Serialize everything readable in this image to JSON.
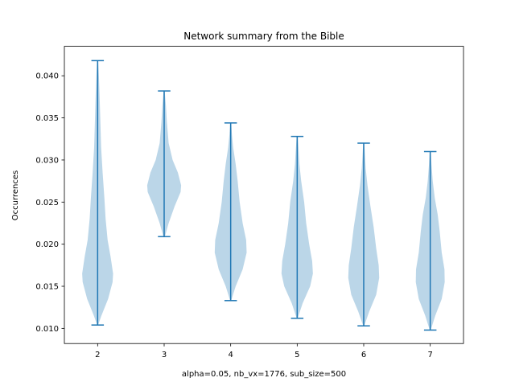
{
  "chart_data": {
    "type": "violin",
    "title": "Network summary from the Bible",
    "xlabel": "alpha=0.05, nb_vx=1776, sub_size=500",
    "ylabel": "Occurrences",
    "xlim": [
      1.5,
      7.5
    ],
    "ylim": [
      0.0082,
      0.0435
    ],
    "x_ticks": [
      2,
      3,
      4,
      5,
      6,
      7
    ],
    "y_ticks": [
      0.01,
      0.015,
      0.02,
      0.025,
      0.03,
      0.035,
      0.04
    ],
    "y_tick_labels": [
      "0.010",
      "0.015",
      "0.020",
      "0.025",
      "0.030",
      "0.035",
      "0.040"
    ],
    "grid": false,
    "colors": {
      "body": "#1f77b4",
      "body_alpha": 0.3,
      "lines": "#1f77b4"
    },
    "violins": [
      {
        "x": 2,
        "min": 0.0104,
        "max": 0.0418,
        "profile": [
          [
            0.0104,
            0.02
          ],
          [
            0.0115,
            0.15
          ],
          [
            0.0135,
            0.42
          ],
          [
            0.0155,
            0.6
          ],
          [
            0.0165,
            0.62
          ],
          [
            0.0185,
            0.52
          ],
          [
            0.0205,
            0.4
          ],
          [
            0.023,
            0.32
          ],
          [
            0.0255,
            0.27
          ],
          [
            0.0285,
            0.2
          ],
          [
            0.0315,
            0.14
          ],
          [
            0.0345,
            0.11
          ],
          [
            0.0375,
            0.08
          ],
          [
            0.04,
            0.05
          ],
          [
            0.0418,
            0.02
          ]
        ]
      },
      {
        "x": 3,
        "min": 0.0209,
        "max": 0.0382,
        "profile": [
          [
            0.0209,
            0.03
          ],
          [
            0.0225,
            0.18
          ],
          [
            0.0245,
            0.42
          ],
          [
            0.0262,
            0.66
          ],
          [
            0.027,
            0.68
          ],
          [
            0.0285,
            0.55
          ],
          [
            0.03,
            0.34
          ],
          [
            0.032,
            0.18
          ],
          [
            0.0345,
            0.11
          ],
          [
            0.0365,
            0.07
          ],
          [
            0.0382,
            0.02
          ]
        ]
      },
      {
        "x": 4,
        "min": 0.0133,
        "max": 0.0344,
        "profile": [
          [
            0.0133,
            0.02
          ],
          [
            0.015,
            0.2
          ],
          [
            0.017,
            0.48
          ],
          [
            0.019,
            0.64
          ],
          [
            0.0205,
            0.62
          ],
          [
            0.0225,
            0.48
          ],
          [
            0.025,
            0.36
          ],
          [
            0.0275,
            0.28
          ],
          [
            0.0295,
            0.2
          ],
          [
            0.0315,
            0.1
          ],
          [
            0.033,
            0.05
          ],
          [
            0.0344,
            0.02
          ]
        ]
      },
      {
        "x": 5,
        "min": 0.0112,
        "max": 0.0328,
        "profile": [
          [
            0.0112,
            0.02
          ],
          [
            0.013,
            0.22
          ],
          [
            0.015,
            0.52
          ],
          [
            0.0165,
            0.63
          ],
          [
            0.018,
            0.6
          ],
          [
            0.02,
            0.48
          ],
          [
            0.0225,
            0.36
          ],
          [
            0.025,
            0.28
          ],
          [
            0.0275,
            0.16
          ],
          [
            0.0295,
            0.09
          ],
          [
            0.0315,
            0.05
          ],
          [
            0.0328,
            0.02
          ]
        ]
      },
      {
        "x": 6,
        "min": 0.0103,
        "max": 0.032,
        "profile": [
          [
            0.0103,
            0.02
          ],
          [
            0.012,
            0.22
          ],
          [
            0.014,
            0.5
          ],
          [
            0.016,
            0.62
          ],
          [
            0.0175,
            0.6
          ],
          [
            0.0195,
            0.5
          ],
          [
            0.022,
            0.4
          ],
          [
            0.0245,
            0.27
          ],
          [
            0.027,
            0.15
          ],
          [
            0.029,
            0.08
          ],
          [
            0.031,
            0.04
          ],
          [
            0.032,
            0.02
          ]
        ]
      },
      {
        "x": 7,
        "min": 0.0098,
        "max": 0.031,
        "profile": [
          [
            0.0098,
            0.02
          ],
          [
            0.0115,
            0.2
          ],
          [
            0.0135,
            0.46
          ],
          [
            0.0155,
            0.58
          ],
          [
            0.017,
            0.57
          ],
          [
            0.019,
            0.46
          ],
          [
            0.0215,
            0.38
          ],
          [
            0.0235,
            0.3
          ],
          [
            0.0255,
            0.18
          ],
          [
            0.0275,
            0.1
          ],
          [
            0.0295,
            0.05
          ],
          [
            0.031,
            0.02
          ]
        ]
      }
    ]
  }
}
